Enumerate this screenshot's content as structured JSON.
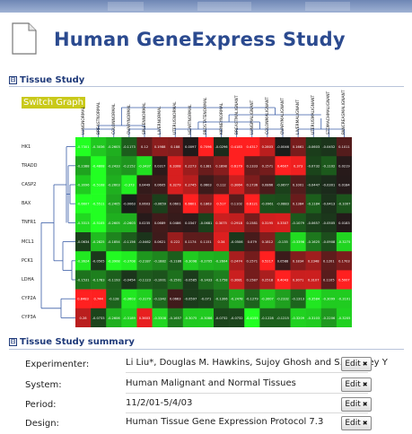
{
  "page": {
    "title": "Human GeneExpress Study"
  },
  "tissue_section": {
    "title": "Tissue Study",
    "toggle_symbol": "⊟",
    "switch_label": "Switch Graph"
  },
  "summary_section": {
    "title": "Tissue Study summary",
    "toggle_symbol": "⊟"
  },
  "chart_data": {
    "type": "heatmap",
    "rows": [
      "HK1",
      "TRADD",
      "CASP2",
      "BAX",
      "TNFR1",
      "MCL1",
      "PCK1",
      "LDHA",
      "CYP2A",
      "CYP3A"
    ],
    "columns": [
      "LUNGNORMAL",
      "BREASTNORMAL",
      "COLONNORMAL",
      "OVARYNORMAL",
      "SPLEENNORMAL",
      "LIVERNORMAL",
      "UTERUSNORMAL",
      "HEARTNORMAL",
      "PROSTATENORMAL",
      "KIDNEYNORMAL",
      "BREASTMALIGNANT",
      "LUNGMALIGNANT",
      "COLONMALIGNANT",
      "OVARYMALIGNANT",
      "LIVERMALIGNANT",
      "UTERUSMALIGNANT",
      "STOMACHMALIGNANT",
      "PANCREASMALIGNANT"
    ],
    "values": [
      [
        -0.7301,
        -0.3036,
        -0.2603,
        -0.1173,
        0.12,
        0.1988,
        0.188,
        0.0097,
        0.7096,
        -0.0296,
        0.4183,
        0.4317,
        0.2803,
        -0.0046,
        0.1661,
        -0.0603,
        -0.0452,
        0.1011
      ],
      [
        -0.2388,
        -0.4808,
        -0.2433,
        -0.2152,
        -0.3437,
        0.0317,
        0.3308,
        0.2273,
        0.1381,
        0.1898,
        0.6179,
        0.1333,
        0.1571,
        0.4607,
        0.373,
        -0.0732,
        -0.1102,
        0.0219
      ],
      [
        -0.3096,
        -0.5108,
        -0.2603,
        -0.373,
        0.0449,
        0.0605,
        0.3279,
        0.2745,
        0.0603,
        0.112,
        0.3064,
        0.1736,
        0.0866,
        -0.0677,
        0.1001,
        -0.0447,
        -0.0301,
        0.0184
      ],
      [
        -0.6607,
        -0.5511,
        -0.2405,
        -0.0063,
        0.0603,
        -0.0659,
        0.0601,
        0.6601,
        0.1863,
        0.517,
        0.1102,
        0.6121,
        -0.0961,
        -0.0883,
        0.1384,
        -0.1184,
        -0.0413,
        -0.1007
      ],
      [
        -0.3313,
        -0.5105,
        -0.2605,
        -0.2603,
        0.0235,
        0.0689,
        0.0486,
        0.0347,
        -0.0681,
        0.3075,
        0.2918,
        0.1581,
        0.3195,
        0.3307,
        -0.1079,
        -0.0657,
        -0.0505,
        0.0183
      ],
      [
        -0.0634,
        -0.2825,
        -0.1854,
        -0.1156,
        -0.0462,
        0.0621,
        0.222,
        0.1174,
        0.1151,
        0.34,
        -0.0506,
        0.079,
        0.1812,
        -0.135,
        -0.3396,
        -0.1625,
        -0.0908,
        -0.3275
      ],
      [
        -0.3624,
        -0.0505,
        -0.3908,
        -0.3708,
        -0.2187,
        -0.1882,
        -0.1186,
        -0.3098,
        -0.2705,
        -0.2604,
        0.2474,
        0.1571,
        0.5217,
        0.0588,
        0.1834,
        0.2348,
        0.1201,
        0.1703
      ],
      [
        -0.1531,
        -0.1783,
        -0.1193,
        -0.0454,
        -0.1123,
        -0.1001,
        -0.1501,
        -0.0585,
        -0.1433,
        -0.1758,
        0.3081,
        0.1587,
        0.2518,
        0.4043,
        0.3071,
        0.3107,
        0.1105,
        0.5007
      ],
      [
        0.8483,
        0.744,
        -0.128,
        -0.3603,
        -0.3179,
        -0.1342,
        0.0663,
        -0.0597,
        -0.071,
        -0.1306,
        -0.2478,
        -0.1279,
        -0.3007,
        -0.2332,
        -0.1313,
        -0.3584,
        -0.3099,
        -0.3101
      ],
      [
        0.28,
        -0.0733,
        -0.2606,
        -0.3189,
        0.3603,
        -0.3308,
        -0.1657,
        -0.3075,
        -0.3086,
        -0.0732,
        -0.0732,
        -0.4155,
        -0.1228,
        -0.1215,
        -0.3209,
        -0.3103,
        -0.2206,
        -0.3205
      ]
    ]
  },
  "summary": {
    "experimenter_label": "Experimenter:",
    "experimenter_value": "Li Liu*,  Douglas M. Hawkins,  Sujoy Ghosh and  S. Stanley Y",
    "system_label": "System:",
    "system_value": "Human Malignant and Normal Tissues",
    "period_label": "Period:",
    "period_value": "11/2/01-5/4/03",
    "design_label": "Design:",
    "design_value": "Human Tissue Gene Expression Protocol 7.3",
    "edit_label": "Edit",
    "edit_arrow": "✖"
  },
  "colors": {
    "title": "#2b4a8f",
    "high": "#ff2020",
    "low": "#22ff22",
    "mid": "#1a1a1a",
    "switch_bg": "#c9c91a"
  }
}
